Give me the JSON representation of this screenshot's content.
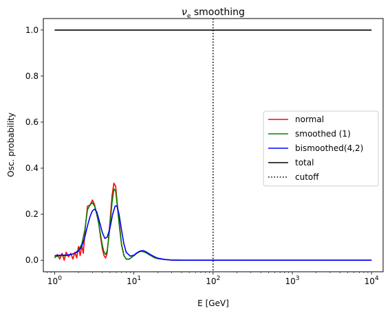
{
  "chart_data": {
    "type": "line",
    "title": {
      "symbol": "ν",
      "subscript": "e",
      "text": " smoothing"
    },
    "xlabel": "E [GeV]",
    "ylabel": "Osc. probability",
    "xscale": "log",
    "xlim": [
      0.72,
      14000
    ],
    "ylim": [
      -0.05,
      1.05
    ],
    "xticks": [
      {
        "value": 1,
        "base": "10",
        "exp": "0"
      },
      {
        "value": 10,
        "base": "10",
        "exp": "1"
      },
      {
        "value": 100,
        "base": "10",
        "exp": "2"
      },
      {
        "value": 1000,
        "base": "10",
        "exp": "3"
      },
      {
        "value": 10000,
        "base": "10",
        "exp": "4"
      }
    ],
    "yticks": [
      {
        "value": 0.0,
        "label": "0.0"
      },
      {
        "value": 0.2,
        "label": "0.2"
      },
      {
        "value": 0.4,
        "label": "0.4"
      },
      {
        "value": 0.6,
        "label": "0.6"
      },
      {
        "value": 0.8,
        "label": "0.8"
      },
      {
        "value": 1.0,
        "label": "1.0"
      }
    ],
    "legend_position": "center-right",
    "series": [
      {
        "name": "normal",
        "color": "#ff0000",
        "x": [
          1.0,
          1.08,
          1.16,
          1.24,
          1.32,
          1.4,
          1.5,
          1.6,
          1.7,
          1.8,
          1.9,
          2.0,
          2.1,
          2.2,
          2.3,
          2.45,
          2.6,
          2.8,
          3.0,
          3.2,
          3.4,
          3.6,
          3.8,
          4.0,
          4.2,
          4.4,
          4.6,
          4.8,
          5.0,
          5.3,
          5.6,
          5.9,
          6.2,
          6.6,
          7.0,
          7.5,
          8.0,
          8.5,
          9.0,
          10.0,
          11.0,
          12.0,
          13.0,
          14.0,
          16.0,
          18.0,
          20.0,
          25.0,
          30.0,
          40.0,
          60.0,
          100.0,
          1000.0,
          10000.0
        ],
        "y": [
          0.01,
          0.025,
          0.005,
          0.03,
          0.0,
          0.035,
          0.015,
          0.03,
          0.005,
          0.035,
          0.01,
          0.06,
          0.02,
          0.065,
          0.03,
          0.15,
          0.235,
          0.24,
          0.262,
          0.24,
          0.2,
          0.16,
          0.1,
          0.05,
          0.02,
          0.01,
          0.03,
          0.1,
          0.17,
          0.28,
          0.335,
          0.32,
          0.24,
          0.15,
          0.07,
          0.02,
          0.005,
          0.004,
          0.008,
          0.02,
          0.032,
          0.04,
          0.04,
          0.035,
          0.022,
          0.012,
          0.007,
          0.003,
          0.001,
          0.0,
          0.0,
          0.0,
          0.0,
          0.0
        ]
      },
      {
        "name": "smoothed (1)",
        "color": "#008000",
        "x": [
          1.0,
          1.2,
          1.4,
          1.6,
          1.8,
          2.0,
          2.2,
          2.4,
          2.6,
          2.8,
          3.0,
          3.2,
          3.4,
          3.6,
          3.8,
          4.0,
          4.2,
          4.4,
          4.6,
          4.8,
          5.0,
          5.3,
          5.6,
          5.9,
          6.2,
          6.6,
          7.0,
          7.5,
          8.0,
          8.5,
          9.0,
          10.0,
          11.0,
          12.0,
          13.0,
          14.0,
          16.0,
          18.0,
          20.0,
          25.0,
          30.0,
          40.0,
          60.0,
          100.0,
          1000.0,
          10000.0
        ],
        "y": [
          0.015,
          0.02,
          0.02,
          0.025,
          0.03,
          0.045,
          0.07,
          0.13,
          0.22,
          0.24,
          0.25,
          0.235,
          0.2,
          0.16,
          0.11,
          0.065,
          0.035,
          0.025,
          0.04,
          0.09,
          0.15,
          0.25,
          0.31,
          0.3,
          0.23,
          0.14,
          0.065,
          0.02,
          0.006,
          0.004,
          0.008,
          0.02,
          0.031,
          0.038,
          0.038,
          0.034,
          0.022,
          0.012,
          0.007,
          0.003,
          0.001,
          0.0,
          0.0,
          0.0,
          0.0,
          0.0
        ]
      },
      {
        "name": "bismoothed(4,2)",
        "color": "#0000ff",
        "x": [
          1.0,
          1.2,
          1.4,
          1.6,
          1.8,
          2.0,
          2.2,
          2.4,
          2.6,
          2.8,
          3.0,
          3.2,
          3.4,
          3.6,
          3.8,
          4.0,
          4.3,
          4.6,
          5.0,
          5.4,
          5.8,
          6.1,
          6.5,
          7.0,
          7.5,
          8.0,
          9.0,
          10.0,
          11.0,
          12.0,
          13.0,
          14.0,
          16.0,
          18.0,
          20.0,
          25.0,
          30.0,
          40.0,
          60.0,
          100.0,
          1000.0,
          10000.0
        ],
        "y": [
          0.02,
          0.022,
          0.022,
          0.025,
          0.03,
          0.04,
          0.06,
          0.1,
          0.15,
          0.19,
          0.215,
          0.222,
          0.21,
          0.18,
          0.15,
          0.12,
          0.095,
          0.1,
          0.14,
          0.2,
          0.235,
          0.237,
          0.2,
          0.13,
          0.07,
          0.035,
          0.018,
          0.022,
          0.033,
          0.04,
          0.042,
          0.038,
          0.026,
          0.016,
          0.009,
          0.003,
          0.001,
          0.0,
          0.0,
          0.0,
          0.0,
          0.0
        ]
      },
      {
        "name": "total",
        "color": "#000000",
        "x": [
          1.0,
          10000.0
        ],
        "y": [
          1.0,
          1.0
        ]
      }
    ],
    "cutoff": {
      "name": "cutoff",
      "x": 100,
      "color": "#000000",
      "style": "dotted"
    }
  }
}
